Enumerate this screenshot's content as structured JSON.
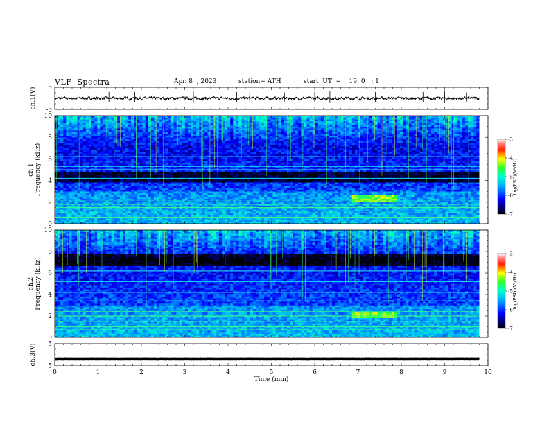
{
  "header": {
    "title": "VLF  Spectra",
    "date": "Apr. 8  , 2023",
    "station": "station= ATH",
    "start": "start  UT  =    19: 0   : 1"
  },
  "chart_data": [
    {
      "type": "line",
      "panel": "ch.1 time series",
      "ylabel": "ch.1(V)",
      "ylim": [
        -5,
        5
      ],
      "yticks": [
        "5",
        "-5"
      ],
      "xlim": [
        0,
        10
      ],
      "series": [
        {
          "x_range": [
            0,
            9.8
          ],
          "baseline": 0,
          "noise_amplitude": 0.6,
          "spikes": [
            [
              1.25,
              1.3
            ],
            [
              1.85,
              1.3
            ],
            [
              2.25,
              1.2
            ],
            [
              3.2,
              1.4
            ],
            [
              4.2,
              1.3
            ],
            [
              4.5,
              1.2
            ],
            [
              5.3,
              1.2
            ],
            [
              6.0,
              1.3
            ],
            [
              6.35,
              1.5
            ],
            [
              7.4,
              1.3
            ],
            [
              8.5,
              1.3
            ],
            [
              9.0,
              1.6
            ],
            [
              9.5,
              1.2
            ]
          ]
        }
      ]
    },
    {
      "type": "heatmap",
      "panel": "ch.1 spectrogram",
      "ylabel": "ch.1 Frequency  (kHz)",
      "ylim": [
        0,
        10
      ],
      "yticks": [
        "0",
        "2",
        "4",
        "6",
        "8",
        "10"
      ],
      "xlim": [
        0,
        10
      ],
      "data_x_range": [
        0,
        9.8
      ],
      "colorbar": {
        "label": "log(PSD)(V²/Hz)",
        "range": [
          -7,
          -3
        ],
        "ticks": [
          "-3",
          "-4",
          "-5",
          "-6",
          "-7"
        ]
      },
      "dark_band_khz": [
        3.9,
        4.8
      ],
      "strong_lines_khz": [
        0.6,
        1.0,
        1.5,
        1.8,
        2.2,
        4.2,
        5.0,
        5.3,
        6.2
      ],
      "enhanced_segment": {
        "x": [
          6.8,
          7.9
        ],
        "freq_khz": [
          2.0,
          2.6
        ]
      }
    },
    {
      "type": "heatmap",
      "panel": "ch.2 spectrogram",
      "ylabel": "ch.2 Frequency  (kHz)",
      "ylim": [
        0,
        10
      ],
      "yticks": [
        "0",
        "2",
        "4",
        "6",
        "8",
        "10"
      ],
      "xlim": [
        0,
        10
      ],
      "data_x_range": [
        0,
        9.8
      ],
      "colorbar": {
        "label": "log(PSD)(V²/Hz)",
        "range": [
          -7,
          -3
        ],
        "ticks": [
          "-3",
          "-4",
          "-5",
          "-6",
          "-7"
        ]
      },
      "dark_band_khz": [
        6.6,
        7.8
      ],
      "strong_lines_khz": [
        0.7,
        1.0,
        1.5,
        2.0,
        2.4,
        3.4,
        4.2,
        5.2,
        6.2
      ],
      "enhanced_segment": {
        "x": [
          6.8,
          7.9
        ],
        "freq_khz": [
          1.8,
          2.4
        ]
      }
    },
    {
      "type": "line",
      "panel": "ch.3 time series",
      "ylabel": "ch.3(V)",
      "ylim": [
        -5,
        5
      ],
      "yticks": [
        "5",
        "-5"
      ],
      "xlim": [
        0,
        10
      ],
      "xlabel": "Time  (min)",
      "xticks": [
        "0",
        "1",
        "2",
        "3",
        "4",
        "5",
        "6",
        "7",
        "8",
        "9",
        "10"
      ],
      "series": [
        {
          "x_range": [
            0,
            9.8
          ],
          "baseline": -2.0,
          "noise_amplitude": 0.05
        }
      ]
    }
  ]
}
